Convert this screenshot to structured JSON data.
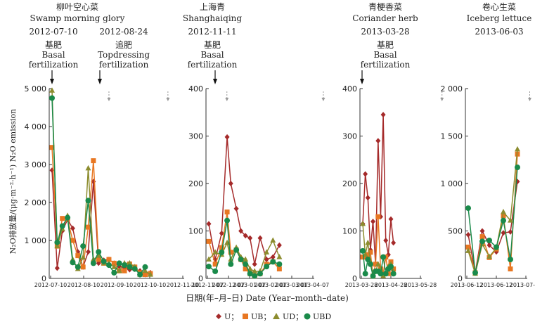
{
  "axis": {
    "ylabel": "N₂O排放量/(μg·m⁻²·h⁻¹)   N₂O emission",
    "xlabel": "日期(年–月–日)  Date (Year–month–date)"
  },
  "legend": [
    {
      "label": "U；",
      "color": "#a52a2a",
      "marker": "diamond"
    },
    {
      "label": "UB；",
      "color": "#e87722",
      "marker": "square"
    },
    {
      "label": "UD；",
      "color": "#8c8c2e",
      "marker": "triangle"
    },
    {
      "label": "UBD",
      "color": "#1a8a4a",
      "marker": "circle"
    }
  ],
  "chart_data": [
    {
      "type": "line",
      "crop_cn": "柳叶空心菜",
      "crop_en": "Swamp morning glory",
      "events": [
        {
          "date": "2012-07-10",
          "cn": "基肥",
          "en1": "Basal",
          "en2": "fertilization"
        },
        {
          "date": "2012-08-24",
          "cn": "追肥",
          "en1": "Topdressing",
          "en2": "fertilization"
        }
      ],
      "ylim": [
        0,
        5000
      ],
      "yticks": [
        "0",
        "1 000",
        "2 000",
        "3 000",
        "4 000",
        "5 000"
      ],
      "xticks": [
        "2012-07-10",
        "2012-08-10",
        "2012-09-10",
        "2012-10-10",
        "2012-11-10"
      ],
      "rain_markers": [
        55,
        112,
        169
      ],
      "x": [
        0,
        5,
        10,
        15,
        20,
        25,
        30,
        35,
        40,
        45,
        50,
        55,
        60,
        65,
        70,
        75,
        80,
        85,
        90,
        95,
        100,
        105,
        110,
        115,
        120,
        125
      ],
      "series": [
        {
          "name": "U",
          "values": [
            2850,
            270,
            1250,
            1550,
            1320,
            700,
            300,
            700,
            2550,
            400,
            480,
            500,
            400,
            320,
            280,
            230,
            240,
            200,
            100,
            150,
            null,
            null,
            null,
            null,
            null,
            null
          ]
        },
        {
          "name": "UB",
          "values": [
            3450,
            850,
            1580,
            1560,
            1000,
            600,
            300,
            1350,
            3100,
            500,
            400,
            500,
            400,
            200,
            200,
            380,
            300,
            150,
            100,
            130,
            null,
            null,
            null,
            null,
            null,
            null
          ]
        },
        {
          "name": "UD",
          "values": [
            4950,
            850,
            1300,
            1650,
            500,
            250,
            550,
            2900,
            500,
            600,
            400,
            400,
            300,
            200,
            400,
            400,
            300,
            100,
            200,
            100,
            null,
            null,
            null,
            null,
            null,
            null
          ]
        },
        {
          "name": "UBD",
          "values": [
            4750,
            950,
            1380,
            1600,
            420,
            300,
            850,
            2050,
            400,
            700,
            450,
            350,
            150,
            400,
            350,
            300,
            250,
            100,
            300,
            null,
            null,
            null,
            null,
            null,
            null,
            null
          ]
        }
      ]
    },
    {
      "type": "line",
      "crop_cn": "上海青",
      "crop_en": "Shanghaiqing",
      "events": [
        {
          "date": "2012-11-11",
          "cn": "基肥",
          "en1": "Basal",
          "en2": "fertilization"
        }
      ],
      "ylim": [
        0,
        400
      ],
      "yticks": [
        "0",
        "100",
        "200",
        "300",
        "400"
      ],
      "xticks": [
        "2012-11-07",
        "2012-12-07",
        "2013-01-07",
        "2013-02-07",
        "2013-03-07",
        "2013-04-07"
      ],
      "rain_markers": [
        125
      ],
      "x": [
        0,
        7,
        14,
        20,
        24,
        30,
        35,
        40,
        45,
        50,
        56,
        63,
        70,
        77,
        84,
        91,
        98,
        105,
        112
      ],
      "series": [
        {
          "name": "U",
          "values": [
            115,
            40,
            95,
            298,
            200,
            147,
            100,
            90,
            85,
            30,
            85,
            40,
            45,
            70,
            null,
            null,
            null,
            null,
            null
          ]
        },
        {
          "name": "UB",
          "values": [
            78,
            30,
            65,
            140,
            55,
            60,
            40,
            20,
            10,
            5,
            10,
            30,
            35,
            20,
            null,
            null,
            null,
            null,
            null
          ]
        },
        {
          "name": "UD",
          "values": [
            40,
            55,
            50,
            75,
            40,
            65,
            45,
            40,
            20,
            15,
            15,
            55,
            80,
            45,
            null,
            null,
            null,
            null,
            null
          ]
        },
        {
          "name": "UBD",
          "values": [
            25,
            15,
            55,
            122,
            30,
            60,
            40,
            30,
            10,
            5,
            10,
            25,
            35,
            30,
            null,
            null,
            null,
            null,
            null
          ]
        }
      ]
    },
    {
      "type": "line",
      "crop_cn": "青梗香菜",
      "crop_en": "Coriander herb",
      "events": [
        {
          "date": "2013-03-28",
          "cn": "基肥",
          "en1": "Basal",
          "en2": "fertilization"
        }
      ],
      "ylim": [
        0,
        400
      ],
      "yticks": [
        "0",
        "100",
        "200",
        "300",
        "400"
      ],
      "xticks": [
        "2013-03-28",
        "2013-04-28",
        "2013-05-28"
      ],
      "rain_markers": [
        62
      ],
      "x": [
        0,
        2,
        4,
        6,
        8,
        10,
        12,
        14,
        16,
        18,
        20,
        22,
        24,
        26,
        28,
        30,
        32,
        34,
        36,
        38,
        40,
        42,
        44
      ],
      "series": [
        {
          "name": "U",
          "values": [
            115,
            220,
            170,
            60,
            120,
            30,
            290,
            130,
            345,
            80,
            50,
            125,
            75,
            null,
            null,
            null,
            null,
            null,
            null,
            null,
            null,
            null,
            null
          ]
        },
        {
          "name": "UB",
          "values": [
            45,
            45,
            50,
            55,
            5,
            30,
            130,
            20,
            10,
            45,
            10,
            35,
            20,
            null,
            null,
            null,
            null,
            null,
            null,
            null,
            null,
            null,
            null
          ]
        },
        {
          "name": "UD",
          "values": [
            115,
            50,
            75,
            35,
            5,
            15,
            30,
            20,
            5,
            10,
            25,
            30,
            15,
            null,
            null,
            null,
            null,
            null,
            null,
            null,
            null,
            null,
            null
          ]
        },
        {
          "name": "UBD",
          "values": [
            58,
            10,
            40,
            30,
            5,
            15,
            15,
            10,
            45,
            10,
            20,
            25,
            10,
            null,
            null,
            null,
            null,
            null,
            null,
            null,
            null,
            null,
            null
          ]
        }
      ]
    },
    {
      "type": "line",
      "crop_cn": "卷心生菜",
      "crop_en": "Iceberg lettuce",
      "events": [
        {
          "date": "2013-06-03",
          "cn": "",
          "en1": "",
          "en2": ""
        }
      ],
      "ylim": [
        0,
        2000
      ],
      "yticks": [
        "0",
        "500",
        "1 000",
        "1 500",
        "2 000"
      ],
      "xticks": [
        "2013-06-12",
        "2013-06-12",
        "2013-07-12"
      ],
      "rain_markers": [
        35
      ],
      "x": [
        0,
        4,
        8,
        12,
        16,
        20,
        24,
        28,
        32
      ],
      "series": [
        {
          "name": "U",
          "values": [
            460,
            60,
            500,
            350,
            280,
            480,
            490,
            1020,
            null
          ]
        },
        {
          "name": "UB",
          "values": [
            330,
            60,
            440,
            220,
            310,
            660,
            100,
            1310,
            null
          ]
        },
        {
          "name": "UD",
          "values": [
            290,
            50,
            360,
            230,
            320,
            700,
            610,
            1360,
            null
          ]
        },
        {
          "name": "UBD",
          "values": [
            740,
            60,
            390,
            400,
            330,
            610,
            200,
            1170,
            null
          ]
        }
      ]
    }
  ]
}
